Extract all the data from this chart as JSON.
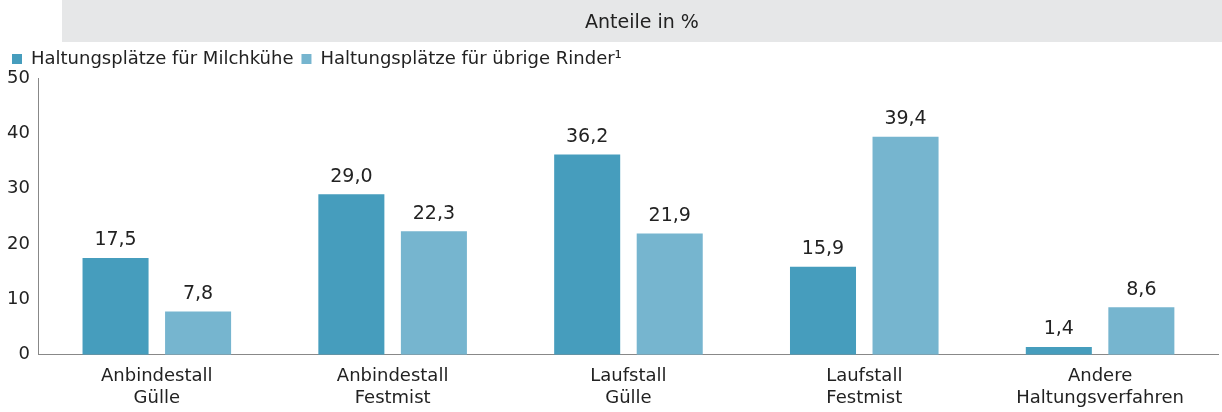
{
  "chart_data": {
    "type": "bar",
    "title": "Anteile in %",
    "categories": [
      "Anbindestall Gülle",
      "Anbindestall Festmist",
      "Laufstall Gülle",
      "Laufstall Festmist",
      "Andere Haltungsverfahren"
    ],
    "series": [
      {
        "name": "Haltungsplätze für Milchkühe",
        "color": "#469dbd",
        "values": [
          17.5,
          29.0,
          36.2,
          15.9,
          1.4
        ],
        "value_labels": [
          "17,5",
          "29,0",
          "36,2",
          "15,9",
          "1,4"
        ]
      },
      {
        "name": "Haltungsplätze für übrige Rinder¹",
        "color": "#76b5cf",
        "values": [
          7.8,
          22.3,
          21.9,
          39.4,
          8.6
        ],
        "value_labels": [
          "7,8",
          "22,3",
          "21,9",
          "39,4",
          "8,6"
        ]
      }
    ],
    "ylim": [
      0,
      50
    ],
    "yticks": [
      0,
      10,
      20,
      30,
      40,
      50
    ],
    "grid": false,
    "legend": "top left"
  }
}
